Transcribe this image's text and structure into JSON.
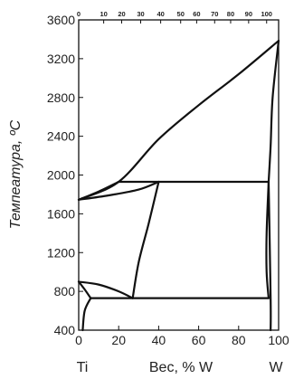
{
  "diagram": {
    "y_axis_title": "Темпеатура, ºС",
    "x_axis_title": "Вес, % W",
    "x_left_element": "Ti",
    "x_right_element": "W",
    "y_tick_labels": [
      "3600",
      "3200",
      "2800",
      "2400",
      "2000",
      "1600",
      "1200",
      "800",
      "400"
    ],
    "x_bottom_tick_labels": [
      "0",
      "20",
      "40",
      "60",
      "80",
      "100"
    ],
    "x_top_tick_labels": [
      "0",
      "10",
      "20",
      "30",
      "40",
      "50",
      "60",
      "70",
      "80",
      "90",
      "100"
    ],
    "line_color": "#111111"
  },
  "chart_data": {
    "type": "phase-diagram",
    "xlim": [
      0,
      100
    ],
    "ylim": [
      400,
      3600
    ],
    "y_ticks": [
      400,
      800,
      1200,
      1600,
      2000,
      2400,
      2800,
      3200,
      3600
    ],
    "x_ticks": [
      0,
      20,
      40,
      60,
      80,
      100
    ],
    "top_axis_ticks_at_percent": [
      0,
      10,
      20,
      30,
      40,
      50,
      60,
      70,
      80,
      90,
      100
    ],
    "top_axis_positions_in_bottom_units": [
      0,
      12.5,
      21.5,
      31,
      41,
      51,
      59,
      68,
      76,
      85,
      94
    ],
    "curves": [
      {
        "name": "liquidus",
        "points": [
          [
            0,
            1745
          ],
          [
            20,
            1930
          ],
          [
            40,
            2370
          ],
          [
            60,
            2720
          ],
          [
            80,
            3040
          ],
          [
            100,
            3385
          ]
        ]
      },
      {
        "name": "solidus",
        "points": [
          [
            95,
            1930
          ],
          [
            96,
            2300
          ],
          [
            97,
            2800
          ],
          [
            100,
            3385
          ]
        ]
      },
      {
        "name": "left-lens-upper",
        "points": [
          [
            0,
            1745
          ],
          [
            10,
            1830
          ],
          [
            20,
            1930
          ]
        ]
      },
      {
        "name": "left-lens-lower",
        "points": [
          [
            0,
            1745
          ],
          [
            15,
            1790
          ],
          [
            30,
            1850
          ],
          [
            40,
            1930
          ]
        ]
      },
      {
        "name": "isotherm-1930",
        "points": [
          [
            20,
            1930
          ],
          [
            95,
            1930
          ]
        ]
      },
      {
        "name": "miscibility-left",
        "points": [
          [
            40,
            1930
          ],
          [
            35,
            1500
          ],
          [
            30,
            1100
          ],
          [
            27,
            730
          ]
        ]
      },
      {
        "name": "miscibility-right",
        "points": [
          [
            95,
            1930
          ],
          [
            94,
            1400
          ],
          [
            94,
            1000
          ],
          [
            95,
            730
          ]
        ]
      },
      {
        "name": "eutectoid-left-upper",
        "points": [
          [
            0,
            900
          ],
          [
            10,
            870
          ],
          [
            20,
            800
          ],
          [
            27,
            730
          ]
        ]
      },
      {
        "name": "eutectoid-left-lower",
        "points": [
          [
            0,
            900
          ],
          [
            3,
            820
          ],
          [
            6,
            730
          ]
        ]
      },
      {
        "name": "isotherm-730",
        "points": [
          [
            6,
            730
          ],
          [
            95,
            730
          ]
        ]
      },
      {
        "name": "alpha-boundary",
        "points": [
          [
            6,
            730
          ],
          [
            3,
            600
          ],
          [
            2,
            400
          ]
        ]
      },
      {
        "name": "w-solvus",
        "points": [
          [
            95,
            1930
          ],
          [
            96,
            730
          ],
          [
            96,
            400
          ]
        ]
      }
    ]
  }
}
